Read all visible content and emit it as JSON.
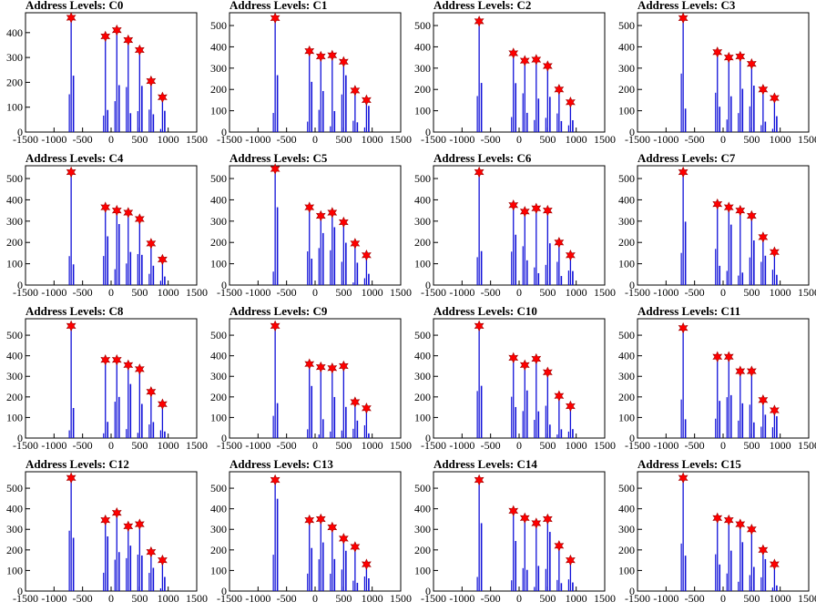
{
  "colors": {
    "bar": "#1010d8",
    "peak_bar": "#000000",
    "marker": "#ff0000",
    "marker_stroke": "#a00000",
    "axis": "#000000"
  },
  "chart_data": [
    {
      "type": "bar",
      "title": "Address Levels: C0",
      "xlim": [
        -1500,
        1500
      ],
      "ylim": [
        0,
        480
      ],
      "x_ticks": [
        "-1500",
        "-1000",
        "-500",
        "0",
        "500",
        "1000",
        "1500"
      ],
      "y_ticks": [
        "0",
        "100",
        "200",
        "300",
        "400"
      ],
      "peaks": [
        {
          "x": -700,
          "y": 460
        },
        {
          "x": -100,
          "y": 385
        },
        {
          "x": 100,
          "y": 410
        },
        {
          "x": 300,
          "y": 370
        },
        {
          "x": 500,
          "y": 330
        },
        {
          "x": 700,
          "y": 205
        },
        {
          "x": 900,
          "y": 140
        }
      ]
    },
    {
      "type": "bar",
      "title": "Address Levels: C1",
      "xlim": [
        -1500,
        1500
      ],
      "ylim": [
        0,
        560
      ],
      "x_ticks": [
        "-1500",
        "-1000",
        "-500",
        "0",
        "500",
        "1000",
        "1500"
      ],
      "y_ticks": [
        "0",
        "100",
        "200",
        "300",
        "400",
        "500"
      ],
      "peaks": [
        {
          "x": -700,
          "y": 535
        },
        {
          "x": -100,
          "y": 380
        },
        {
          "x": 100,
          "y": 355
        },
        {
          "x": 300,
          "y": 360
        },
        {
          "x": 500,
          "y": 330
        },
        {
          "x": 700,
          "y": 195
        },
        {
          "x": 900,
          "y": 150
        }
      ]
    },
    {
      "type": "bar",
      "title": "Address Levels: C2",
      "xlim": [
        -1500,
        1500
      ],
      "ylim": [
        0,
        560
      ],
      "x_ticks": [
        "-1500",
        "-1000",
        "-500",
        "0",
        "500",
        "1000",
        "1500"
      ],
      "y_ticks": [
        "0",
        "100",
        "200",
        "300",
        "400",
        "500"
      ],
      "peaks": [
        {
          "x": -700,
          "y": 520
        },
        {
          "x": -100,
          "y": 370
        },
        {
          "x": 100,
          "y": 335
        },
        {
          "x": 300,
          "y": 340
        },
        {
          "x": 500,
          "y": 310
        },
        {
          "x": 700,
          "y": 200
        },
        {
          "x": 900,
          "y": 140
        }
      ]
    },
    {
      "type": "bar",
      "title": "Address Levels: C3",
      "xlim": [
        -1500,
        1500
      ],
      "ylim": [
        0,
        560
      ],
      "x_ticks": [
        "-1500",
        "-1000",
        "-500",
        "0",
        "500",
        "1000",
        "1500"
      ],
      "y_ticks": [
        "0",
        "100",
        "200",
        "300",
        "400",
        "500"
      ],
      "peaks": [
        {
          "x": -700,
          "y": 535
        },
        {
          "x": -100,
          "y": 375
        },
        {
          "x": 100,
          "y": 350
        },
        {
          "x": 300,
          "y": 355
        },
        {
          "x": 500,
          "y": 320
        },
        {
          "x": 700,
          "y": 200
        },
        {
          "x": 900,
          "y": 160
        }
      ]
    },
    {
      "type": "bar",
      "title": "Address Levels: C4",
      "xlim": [
        -1500,
        1500
      ],
      "ylim": [
        0,
        560
      ],
      "x_ticks": [
        "-1500",
        "-1000",
        "-500",
        "0",
        "500",
        "1000",
        "1500"
      ],
      "y_ticks": [
        "0",
        "100",
        "200",
        "300",
        "400",
        "500"
      ],
      "peaks": [
        {
          "x": -700,
          "y": 530
        },
        {
          "x": -100,
          "y": 365
        },
        {
          "x": 100,
          "y": 350
        },
        {
          "x": 300,
          "y": 340
        },
        {
          "x": 500,
          "y": 310
        },
        {
          "x": 700,
          "y": 195
        },
        {
          "x": 900,
          "y": 120
        }
      ]
    },
    {
      "type": "bar",
      "title": "Address Levels: C5",
      "xlim": [
        -1500,
        1500
      ],
      "ylim": [
        0,
        560
      ],
      "x_ticks": [
        "-1500",
        "-1000",
        "-500",
        "0",
        "500",
        "1000",
        "1500"
      ],
      "y_ticks": [
        "0",
        "100",
        "200",
        "300",
        "400",
        "500"
      ],
      "peaks": [
        {
          "x": -700,
          "y": 545
        },
        {
          "x": -100,
          "y": 365
        },
        {
          "x": 100,
          "y": 325
        },
        {
          "x": 300,
          "y": 340
        },
        {
          "x": 500,
          "y": 295
        },
        {
          "x": 700,
          "y": 195
        },
        {
          "x": 900,
          "y": 140
        }
      ]
    },
    {
      "type": "bar",
      "title": "Address Levels: C6",
      "xlim": [
        -1500,
        1500
      ],
      "ylim": [
        0,
        560
      ],
      "x_ticks": [
        "-1500",
        "-1000",
        "-500",
        "0",
        "500",
        "1000",
        "1500"
      ],
      "y_ticks": [
        "0",
        "100",
        "200",
        "300",
        "400",
        "500"
      ],
      "peaks": [
        {
          "x": -700,
          "y": 530
        },
        {
          "x": -100,
          "y": 375
        },
        {
          "x": 100,
          "y": 345
        },
        {
          "x": 300,
          "y": 360
        },
        {
          "x": 500,
          "y": 350
        },
        {
          "x": 700,
          "y": 200
        },
        {
          "x": 900,
          "y": 140
        }
      ]
    },
    {
      "type": "bar",
      "title": "Address Levels: C7",
      "xlim": [
        -1500,
        1500
      ],
      "ylim": [
        0,
        560
      ],
      "x_ticks": [
        "-1500",
        "-1000",
        "-500",
        "0",
        "500",
        "1000",
        "1500"
      ],
      "y_ticks": [
        "0",
        "100",
        "200",
        "300",
        "400",
        "500"
      ],
      "peaks": [
        {
          "x": -700,
          "y": 530
        },
        {
          "x": -100,
          "y": 380
        },
        {
          "x": 100,
          "y": 365
        },
        {
          "x": 300,
          "y": 350
        },
        {
          "x": 500,
          "y": 325
        },
        {
          "x": 700,
          "y": 225
        },
        {
          "x": 900,
          "y": 155
        }
      ]
    },
    {
      "type": "bar",
      "title": "Address Levels: C8",
      "xlim": [
        -1500,
        1500
      ],
      "ylim": [
        0,
        580
      ],
      "x_ticks": [
        "-1500",
        "-1000",
        "-500",
        "0",
        "500",
        "1000",
        "1500"
      ],
      "y_ticks": [
        "0",
        "100",
        "200",
        "300",
        "400",
        "500"
      ],
      "peaks": [
        {
          "x": -700,
          "y": 545
        },
        {
          "x": -100,
          "y": 380
        },
        {
          "x": 100,
          "y": 380
        },
        {
          "x": 300,
          "y": 355
        },
        {
          "x": 500,
          "y": 335
        },
        {
          "x": 700,
          "y": 225
        },
        {
          "x": 900,
          "y": 165
        }
      ]
    },
    {
      "type": "bar",
      "title": "Address Levels: C9",
      "xlim": [
        -1500,
        1500
      ],
      "ylim": [
        0,
        580
      ],
      "x_ticks": [
        "-1500",
        "-1000",
        "-500",
        "0",
        "500",
        "1000",
        "1500"
      ],
      "y_ticks": [
        "0",
        "100",
        "200",
        "300",
        "400",
        "500"
      ],
      "peaks": [
        {
          "x": -700,
          "y": 545
        },
        {
          "x": -100,
          "y": 360
        },
        {
          "x": 100,
          "y": 345
        },
        {
          "x": 300,
          "y": 340
        },
        {
          "x": 500,
          "y": 350
        },
        {
          "x": 700,
          "y": 175
        },
        {
          "x": 900,
          "y": 145
        }
      ]
    },
    {
      "type": "bar",
      "title": "Address Levels: C10",
      "xlim": [
        -1500,
        1500
      ],
      "ylim": [
        0,
        580
      ],
      "x_ticks": [
        "-1500",
        "-1000",
        "-500",
        "0",
        "500",
        "1000",
        "1500"
      ],
      "y_ticks": [
        "0",
        "100",
        "200",
        "300",
        "400",
        "500"
      ],
      "peaks": [
        {
          "x": -700,
          "y": 545
        },
        {
          "x": -100,
          "y": 390
        },
        {
          "x": 100,
          "y": 355
        },
        {
          "x": 300,
          "y": 385
        },
        {
          "x": 500,
          "y": 320
        },
        {
          "x": 700,
          "y": 205
        },
        {
          "x": 900,
          "y": 155
        }
      ]
    },
    {
      "type": "bar",
      "title": "Address Levels: C11",
      "xlim": [
        -1500,
        1500
      ],
      "ylim": [
        0,
        580
      ],
      "x_ticks": [
        "-1500",
        "-1000",
        "-500",
        "0",
        "500",
        "1000",
        "1500"
      ],
      "y_ticks": [
        "0",
        "100",
        "200",
        "300",
        "400",
        "500"
      ],
      "peaks": [
        {
          "x": -700,
          "y": 535
        },
        {
          "x": -100,
          "y": 395
        },
        {
          "x": 100,
          "y": 395
        },
        {
          "x": 300,
          "y": 325
        },
        {
          "x": 500,
          "y": 325
        },
        {
          "x": 700,
          "y": 185
        },
        {
          "x": 900,
          "y": 135
        }
      ]
    },
    {
      "type": "bar",
      "title": "Address Levels: C12",
      "xlim": [
        -1500,
        1500
      ],
      "ylim": [
        0,
        580
      ],
      "x_ticks": [
        "-1500",
        "-1000",
        "-500",
        "0",
        "500",
        "1000",
        "1500"
      ],
      "y_ticks": [
        "0",
        "100",
        "200",
        "300",
        "400",
        "500"
      ],
      "peaks": [
        {
          "x": -700,
          "y": 550
        },
        {
          "x": -100,
          "y": 345
        },
        {
          "x": 100,
          "y": 380
        },
        {
          "x": 300,
          "y": 315
        },
        {
          "x": 500,
          "y": 325
        },
        {
          "x": 700,
          "y": 190
        },
        {
          "x": 900,
          "y": 150
        }
      ]
    },
    {
      "type": "bar",
      "title": "Address Levels: C13",
      "xlim": [
        -1500,
        1500
      ],
      "ylim": [
        0,
        580
      ],
      "x_ticks": [
        "-1500",
        "-1000",
        "-500",
        "0",
        "500",
        "1000",
        "1500"
      ],
      "y_ticks": [
        "0",
        "100",
        "200",
        "300",
        "400",
        "500"
      ],
      "peaks": [
        {
          "x": -700,
          "y": 540
        },
        {
          "x": -100,
          "y": 345
        },
        {
          "x": 100,
          "y": 350
        },
        {
          "x": 300,
          "y": 310
        },
        {
          "x": 500,
          "y": 255
        },
        {
          "x": 700,
          "y": 215
        },
        {
          "x": 900,
          "y": 130
        }
      ]
    },
    {
      "type": "bar",
      "title": "Address Levels: C14",
      "xlim": [
        -1500,
        1500
      ],
      "ylim": [
        0,
        580
      ],
      "x_ticks": [
        "-1500",
        "-1000",
        "-500",
        "0",
        "500",
        "1000",
        "1500"
      ],
      "y_ticks": [
        "0",
        "100",
        "200",
        "300",
        "400",
        "500"
      ],
      "peaks": [
        {
          "x": -700,
          "y": 540
        },
        {
          "x": -100,
          "y": 390
        },
        {
          "x": 100,
          "y": 355
        },
        {
          "x": 300,
          "y": 330
        },
        {
          "x": 500,
          "y": 350
        },
        {
          "x": 700,
          "y": 220
        },
        {
          "x": 900,
          "y": 150
        }
      ]
    },
    {
      "type": "bar",
      "title": "Address Levels: C15",
      "xlim": [
        -1500,
        1500
      ],
      "ylim": [
        0,
        580
      ],
      "x_ticks": [
        "-1500",
        "-1000",
        "-500",
        "0",
        "500",
        "1000",
        "1500"
      ],
      "y_ticks": [
        "0",
        "100",
        "200",
        "300",
        "400",
        "500"
      ],
      "peaks": [
        {
          "x": -700,
          "y": 550
        },
        {
          "x": -100,
          "y": 355
        },
        {
          "x": 100,
          "y": 345
        },
        {
          "x": 300,
          "y": 325
        },
        {
          "x": 500,
          "y": 300
        },
        {
          "x": 700,
          "y": 200
        },
        {
          "x": 900,
          "y": 130
        }
      ]
    }
  ]
}
